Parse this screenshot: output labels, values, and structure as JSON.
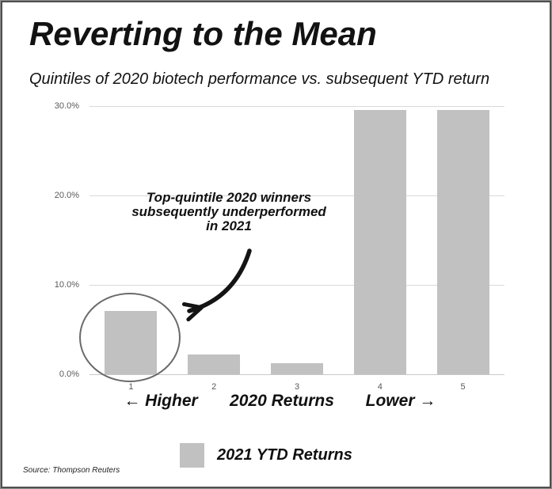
{
  "header": {
    "title": "Reverting to the Mean",
    "subtitle": "Quintiles of 2020 biotech performance vs. subsequent YTD return"
  },
  "chart_data": {
    "type": "bar",
    "title": "Reverting to the Mean",
    "subtitle": "Quintiles of 2020 biotech performance vs. subsequent YTD return",
    "categories": [
      "1",
      "2",
      "3",
      "4",
      "5"
    ],
    "series": [
      {
        "name": "2021 YTD Returns",
        "values": [
          7.1,
          2.2,
          1.2,
          29.6,
          29.6
        ]
      }
    ],
    "unit": "percent",
    "xlabel": "2020 Returns",
    "x_direction_labels": {
      "left": "← Higher",
      "right": "Lower →"
    },
    "ylim": [
      0,
      30
    ],
    "yticks": [
      {
        "value": 0,
        "label": "0.0%"
      },
      {
        "value": 10,
        "label": "10.0%"
      },
      {
        "value": 20,
        "label": "20.0%"
      },
      {
        "value": 30,
        "label": "30.0%"
      }
    ],
    "grid": true,
    "legend_position": "bottom",
    "bar_color": "#c1c1c1",
    "annotation": "Top-quintile 2020 winners subsequently underperformed in 2021",
    "annotation_target": "quintile 1 bar (circled)"
  },
  "annotation": {
    "line1": "Top-quintile 2020 winners",
    "line2": "subsequently underperformed",
    "line3": "in 2021"
  },
  "captions": {
    "higher": "← Higher",
    "xlabel": "2020 Returns",
    "lower": "Lower →"
  },
  "legend": {
    "label": "2021 YTD Returns",
    "swatch_color": "#c1c1c1"
  },
  "footer": {
    "source": "Source: Thompson Reuters"
  },
  "colors": {
    "bar": "#c1c1c1",
    "gridline": "#d9d9d9",
    "axis_text": "#595959",
    "text": "#111111",
    "circle": "#6a6a6a",
    "arrow": "#141414",
    "border": "#4f4f4f"
  }
}
